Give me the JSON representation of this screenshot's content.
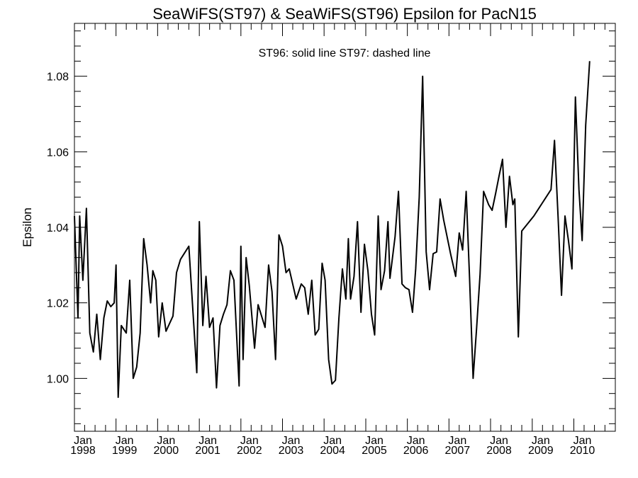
{
  "chart_data": {
    "type": "line",
    "title": "SeaWiFS(ST97) & SeaWiFS(ST96)  Epsilon for PacN15",
    "annotation": "ST96: solid line   ST97: dashed line",
    "xlabel": "",
    "ylabel": "Epsilon",
    "xlim": [
      "1998-01-01",
      "2010-12-31"
    ],
    "ylim": [
      0.986,
      1.094
    ],
    "yticks": [
      1.0,
      1.02,
      1.04,
      1.06,
      1.08
    ],
    "ytick_labels": [
      "1.00",
      "1.02",
      "1.04",
      "1.06",
      "1.08"
    ],
    "xticks": [
      "1998-01-01",
      "1999-01-01",
      "2000-01-01",
      "2001-01-01",
      "2002-01-01",
      "2003-01-01",
      "2004-01-01",
      "2005-01-01",
      "2006-01-01",
      "2007-01-01",
      "2008-01-01",
      "2009-01-01",
      "2010-01-01"
    ],
    "xtick_labels": [
      {
        "month": "Jan",
        "year": "1998"
      },
      {
        "month": "Jan",
        "year": "1999"
      },
      {
        "month": "Jan",
        "year": "2000"
      },
      {
        "month": "Jan",
        "year": "2001"
      },
      {
        "month": "Jan",
        "year": "2002"
      },
      {
        "month": "Jan",
        "year": "2003"
      },
      {
        "month": "Jan",
        "year": "2004"
      },
      {
        "month": "Jan",
        "year": "2005"
      },
      {
        "month": "Jan",
        "year": "2006"
      },
      {
        "month": "Jan",
        "year": "2007"
      },
      {
        "month": "Jan",
        "year": "2008"
      },
      {
        "month": "Jan",
        "year": "2009"
      },
      {
        "month": "Jan",
        "year": "2010"
      }
    ],
    "grid": false,
    "series": [
      {
        "name": "ST96",
        "style": "solid",
        "color": "#000000",
        "points": [
          [
            "1998-01-01",
            1.043
          ],
          [
            "1998-02-01",
            1.016
          ],
          [
            "1998-02-16",
            1.043
          ],
          [
            "1998-03-16",
            1.026
          ],
          [
            "1998-04-16",
            1.045
          ],
          [
            "1998-05-16",
            1.012
          ],
          [
            "1998-06-16",
            1.007
          ],
          [
            "1998-07-16",
            1.017
          ],
          [
            "1998-08-16",
            1.005
          ],
          [
            "1998-09-16",
            1.016
          ],
          [
            "1998-10-16",
            1.0205
          ],
          [
            "1998-11-16",
            1.019
          ],
          [
            "1998-12-16",
            1.02
          ],
          [
            "1999-01-01",
            1.03
          ],
          [
            "1999-01-20",
            0.995
          ],
          [
            "1999-02-16",
            1.014
          ],
          [
            "1999-04-01",
            1.012
          ],
          [
            "1999-05-01",
            1.026
          ],
          [
            "1999-06-01",
            1.0
          ],
          [
            "1999-07-01",
            1.003
          ],
          [
            "1999-08-01",
            1.012
          ],
          [
            "1999-09-01",
            1.037
          ],
          [
            "1999-10-01",
            1.03
          ],
          [
            "1999-11-01",
            1.02
          ],
          [
            "1999-11-20",
            1.0285
          ],
          [
            "1999-12-16",
            1.026
          ],
          [
            "2000-01-10",
            1.011
          ],
          [
            "2000-02-10",
            1.02
          ],
          [
            "2000-03-15",
            1.0125
          ],
          [
            "2000-05-15",
            1.0165
          ],
          [
            "2000-06-15",
            1.028
          ],
          [
            "2000-07-20",
            1.0315
          ],
          [
            "2000-10-01",
            1.035
          ],
          [
            "2000-12-10",
            1.0015
          ],
          [
            "2001-01-01",
            1.0415
          ],
          [
            "2001-02-01",
            1.014
          ],
          [
            "2001-03-01",
            1.027
          ],
          [
            "2001-04-01",
            1.0135
          ],
          [
            "2001-05-01",
            1.016
          ],
          [
            "2001-06-01",
            0.9975
          ],
          [
            "2001-07-01",
            1.014
          ],
          [
            "2001-08-01",
            1.017
          ],
          [
            "2001-09-01",
            1.0195
          ],
          [
            "2001-10-01",
            1.0285
          ],
          [
            "2001-11-01",
            1.026
          ],
          [
            "2001-12-16",
            0.998
          ],
          [
            "2002-01-01",
            1.035
          ],
          [
            "2002-01-20",
            1.005
          ],
          [
            "2002-02-16",
            1.032
          ],
          [
            "2002-03-16",
            1.0245
          ],
          [
            "2002-05-01",
            1.008
          ],
          [
            "2002-06-01",
            1.0195
          ],
          [
            "2002-08-01",
            1.0135
          ],
          [
            "2002-09-01",
            1.03
          ],
          [
            "2002-10-01",
            1.023
          ],
          [
            "2002-11-01",
            1.005
          ],
          [
            "2002-12-01",
            1.038
          ],
          [
            "2003-01-01",
            1.035
          ],
          [
            "2003-02-01",
            1.028
          ],
          [
            "2003-03-01",
            1.029
          ],
          [
            "2003-05-01",
            1.021
          ],
          [
            "2003-06-15",
            1.025
          ],
          [
            "2003-07-15",
            1.024
          ],
          [
            "2003-08-15",
            1.017
          ],
          [
            "2003-09-15",
            1.026
          ],
          [
            "2003-10-15",
            1.0115
          ],
          [
            "2003-11-15",
            1.013
          ],
          [
            "2003-12-15",
            1.0305
          ],
          [
            "2004-01-10",
            1.026
          ],
          [
            "2004-02-10",
            1.005
          ],
          [
            "2004-03-10",
            0.9985
          ],
          [
            "2004-04-10",
            0.9995
          ],
          [
            "2004-05-10",
            1.016
          ],
          [
            "2004-06-10",
            1.029
          ],
          [
            "2004-07-10",
            1.021
          ],
          [
            "2004-08-01",
            1.037
          ],
          [
            "2004-08-20",
            1.021
          ],
          [
            "2004-09-20",
            1.027
          ],
          [
            "2004-10-20",
            1.0415
          ],
          [
            "2004-11-20",
            1.0175
          ],
          [
            "2004-12-20",
            1.0355
          ],
          [
            "2005-01-20",
            1.0285
          ],
          [
            "2005-02-20",
            1.017
          ],
          [
            "2005-03-20",
            1.0115
          ],
          [
            "2005-04-20",
            1.043
          ],
          [
            "2005-05-15",
            1.0235
          ],
          [
            "2005-06-15",
            1.0285
          ],
          [
            "2005-07-15",
            1.0415
          ],
          [
            "2005-08-01",
            1.0265
          ],
          [
            "2005-09-15",
            1.0375
          ],
          [
            "2005-10-15",
            1.0495
          ],
          [
            "2005-11-15",
            1.025
          ],
          [
            "2005-12-15",
            1.024
          ],
          [
            "2006-01-15",
            1.0235
          ],
          [
            "2006-02-15",
            1.0175
          ],
          [
            "2006-03-15",
            1.029
          ],
          [
            "2006-04-15",
            1.048
          ],
          [
            "2006-05-15",
            1.08
          ],
          [
            "2006-06-15",
            1.0335
          ],
          [
            "2006-07-15",
            1.0235
          ],
          [
            "2006-08-15",
            1.033
          ],
          [
            "2006-09-15",
            1.0335
          ],
          [
            "2006-10-15",
            1.0475
          ],
          [
            "2006-11-15",
            1.042
          ],
          [
            "2007-01-15",
            1.033
          ],
          [
            "2007-03-01",
            1.027
          ],
          [
            "2007-04-01",
            1.0385
          ],
          [
            "2007-05-01",
            1.034
          ],
          [
            "2007-06-01",
            1.0495
          ],
          [
            "2007-07-01",
            1.0265
          ],
          [
            "2007-08-01",
            1.0
          ],
          [
            "2007-09-01",
            1.0135
          ],
          [
            "2007-10-01",
            1.0275
          ],
          [
            "2007-11-01",
            1.0495
          ],
          [
            "2007-12-15",
            1.046
          ],
          [
            "2008-01-15",
            1.0445
          ],
          [
            "2008-02-15",
            1.049
          ],
          [
            "2008-03-15",
            1.0535
          ],
          [
            "2008-04-15",
            1.058
          ],
          [
            "2008-05-15",
            1.04
          ],
          [
            "2008-06-15",
            1.0535
          ],
          [
            "2008-07-15",
            1.046
          ],
          [
            "2008-08-01",
            1.0475
          ],
          [
            "2008-09-01",
            1.011
          ],
          [
            "2008-10-01",
            1.039
          ],
          [
            "2009-01-15",
            1.043
          ],
          [
            "2009-06-15",
            1.05
          ],
          [
            "2009-07-15",
            1.063
          ],
          [
            "2009-08-15",
            1.043
          ],
          [
            "2009-09-15",
            1.022
          ],
          [
            "2009-10-15",
            1.043
          ],
          [
            "2009-11-15",
            1.0365
          ],
          [
            "2009-12-15",
            1.029
          ],
          [
            "2010-01-15",
            1.0745
          ],
          [
            "2010-02-15",
            1.05
          ],
          [
            "2010-03-15",
            1.0365
          ],
          [
            "2010-04-15",
            1.067
          ],
          [
            "2010-05-20",
            1.084
          ]
        ]
      }
    ]
  }
}
